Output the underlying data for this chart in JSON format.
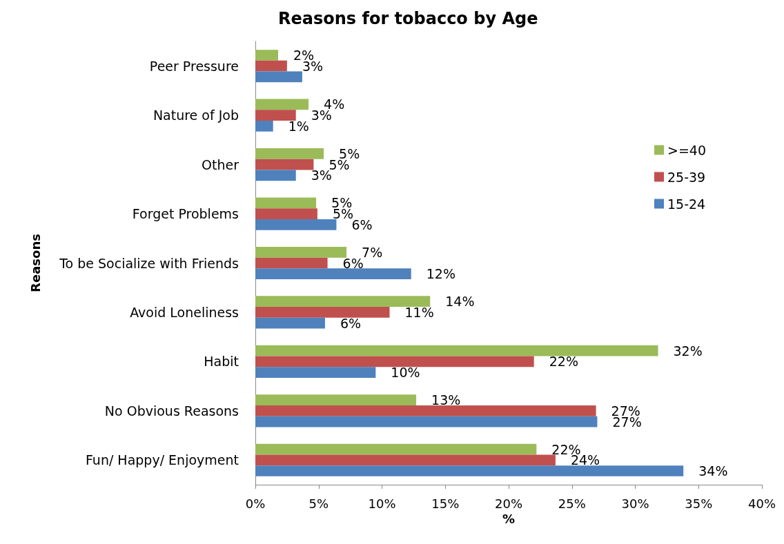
{
  "chart_data": {
    "type": "bar",
    "orientation": "horizontal",
    "title": "Reasons for tobacco by Age",
    "xlabel": "%",
    "ylabel": "Reasons",
    "categories": [
      "Peer Pressure",
      "Nature of Job",
      "Other",
      "Forget Problems",
      "To be Socialize with Friends",
      "Avoid Loneliness",
      "Habit",
      "No Obvious Reasons",
      "Fun/ Happy/ Enjoyment"
    ],
    "series": [
      {
        "name": ">=40",
        "color": "#9bbb59",
        "values": [
          1.8,
          4.2,
          5.4,
          4.8,
          7.2,
          13.8,
          31.8,
          12.7,
          22.2
        ],
        "value_labels": [
          "2%",
          "4%",
          "5%",
          "5%",
          "7%",
          "14%",
          "32%",
          "13%",
          "22%"
        ]
      },
      {
        "name": "25-39",
        "color": "#c0504d",
        "values": [
          2.5,
          3.2,
          4.6,
          4.9,
          5.7,
          10.6,
          22,
          26.9,
          23.7
        ],
        "value_labels": [
          "3%",
          "3%",
          "5%",
          "5%",
          "6%",
          "11%",
          "22%",
          "27%",
          "24%"
        ]
      },
      {
        "name": "15-24",
        "color": "#4f81bd",
        "values": [
          3.7,
          1.4,
          3.2,
          6.4,
          12.3,
          5.5,
          9.5,
          27,
          33.8
        ],
        "value_labels": [
          null,
          "1%",
          "3%",
          "6%",
          "12%",
          "6%",
          "10%",
          "27%",
          "34%"
        ]
      }
    ],
    "xlim": [
      0,
      40
    ],
    "xticks": [
      {
        "value": 0,
        "label": "0%"
      },
      {
        "value": 5,
        "label": "5%"
      },
      {
        "value": 10,
        "label": "10%"
      },
      {
        "value": 15,
        "label": "15%"
      },
      {
        "value": 20,
        "label": "20%"
      },
      {
        "value": 25,
        "label": "25%"
      },
      {
        "value": 30,
        "label": "30%"
      },
      {
        "value": 35,
        "label": "35%"
      },
      {
        "value": 40,
        "label": "40%"
      }
    ],
    "grid": false,
    "legend": "right"
  }
}
